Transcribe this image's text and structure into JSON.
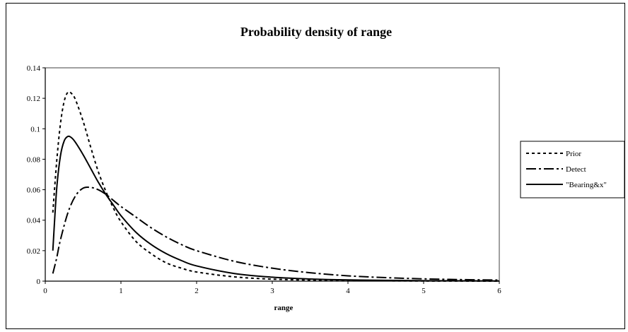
{
  "chart_data": {
    "type": "line",
    "title": "Probability density of range",
    "xlabel": "range",
    "ylabel": "",
    "xlim": [
      0,
      6
    ],
    "ylim": [
      0,
      0.14
    ],
    "x_ticks": [
      "0",
      "1",
      "2",
      "3",
      "4",
      "5",
      "6"
    ],
    "y_ticks": [
      "0",
      "0.02",
      "0.04",
      "0.06",
      "0.08",
      "0.1",
      "0.12",
      "0.14"
    ],
    "grid": false,
    "legend_position": "right",
    "series": [
      {
        "name": "Prior",
        "dash": "short-dash",
        "x": [
          0.1,
          0.15,
          0.2,
          0.25,
          0.3,
          0.35,
          0.4,
          0.5,
          0.6,
          0.7,
          0.8,
          0.9,
          1.0,
          1.2,
          1.4,
          1.6,
          1.8,
          2.0,
          2.5,
          3.0,
          3.5,
          4.0,
          5.0,
          6.0
        ],
        "y": [
          0.045,
          0.078,
          0.103,
          0.118,
          0.124,
          0.123,
          0.119,
          0.105,
          0.088,
          0.072,
          0.059,
          0.048,
          0.039,
          0.026,
          0.018,
          0.012,
          0.0085,
          0.006,
          0.0028,
          0.0013,
          0.0007,
          0.0004,
          0.0001,
          0.0
        ]
      },
      {
        "name": "Detect",
        "dash": "dash-dot",
        "x": [
          0.1,
          0.15,
          0.2,
          0.3,
          0.4,
          0.5,
          0.6,
          0.7,
          0.8,
          0.9,
          1.0,
          1.2,
          1.4,
          1.6,
          1.8,
          2.0,
          2.5,
          3.0,
          3.5,
          4.0,
          4.5,
          5.0,
          5.5,
          6.0
        ],
        "y": [
          0.005,
          0.015,
          0.027,
          0.045,
          0.056,
          0.061,
          0.0615,
          0.06,
          0.057,
          0.053,
          0.049,
          0.042,
          0.035,
          0.029,
          0.024,
          0.02,
          0.013,
          0.0085,
          0.0055,
          0.0035,
          0.0023,
          0.0015,
          0.001,
          0.0007
        ]
      },
      {
        "name": "\"Bearing&x\"",
        "dash": "solid",
        "x": [
          0.1,
          0.15,
          0.2,
          0.25,
          0.3,
          0.35,
          0.4,
          0.5,
          0.6,
          0.7,
          0.8,
          0.9,
          1.0,
          1.2,
          1.4,
          1.6,
          1.8,
          2.0,
          2.5,
          3.0,
          3.5,
          4.0,
          5.0,
          6.0
        ],
        "y": [
          0.02,
          0.06,
          0.082,
          0.092,
          0.095,
          0.094,
          0.091,
          0.083,
          0.074,
          0.065,
          0.057,
          0.05,
          0.043,
          0.032,
          0.024,
          0.018,
          0.0135,
          0.01,
          0.005,
          0.0026,
          0.0014,
          0.0008,
          0.0003,
          0.0001
        ]
      }
    ]
  }
}
